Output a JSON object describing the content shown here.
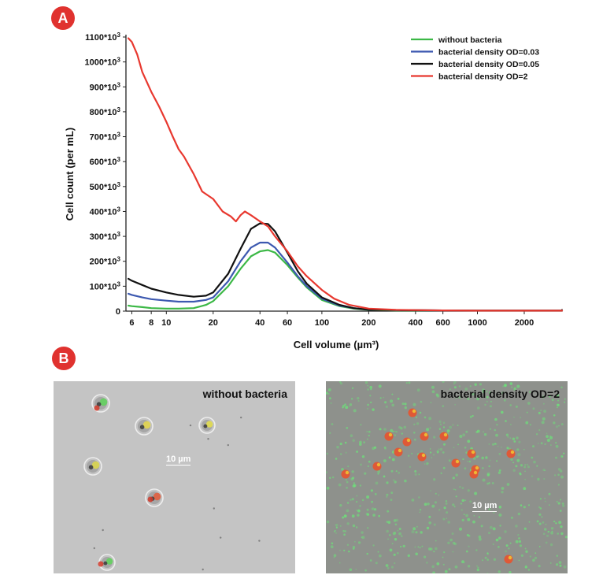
{
  "panel_a_label": "A",
  "panel_b_label": "B",
  "chart_data": {
    "type": "line",
    "xscale": "log",
    "xlabel": "Cell volume (µm³)",
    "ylabel": "Cell count (per mL)",
    "xlim": [
      5.5,
      3500
    ],
    "ylim": [
      0,
      1100000
    ],
    "xticks": [
      6,
      8,
      10,
      20,
      40,
      60,
      100,
      200,
      400,
      600,
      1000,
      2000
    ],
    "xticklabels": [
      "6",
      "8",
      "10",
      "20",
      "40",
      "60",
      "100",
      "200",
      "400",
      "600",
      "1000",
      "2000"
    ],
    "yticks": [
      0,
      100000,
      200000,
      300000,
      400000,
      500000,
      600000,
      700000,
      800000,
      900000,
      1000000,
      1100000
    ],
    "yticklabels": [
      "0",
      "100*10³",
      "200*10³",
      "300*10³",
      "400*10³",
      "500*10³",
      "600*10³",
      "700*10³",
      "800*10³",
      "900*10³",
      "1000*10³",
      "1100*10³"
    ],
    "legend_position": "top-right",
    "series": [
      {
        "name": "without bacteria",
        "color": "#3cb846",
        "x": [
          5.7,
          6,
          7,
          8,
          10,
          12,
          15,
          18,
          20,
          25,
          30,
          35,
          40,
          45,
          50,
          60,
          70,
          80,
          100,
          130,
          160,
          200,
          300,
          600,
          1000,
          2000,
          3500
        ],
        "y": [
          22000,
          20000,
          16000,
          12000,
          10000,
          10000,
          12000,
          25000,
          40000,
          100000,
          170000,
          220000,
          240000,
          245000,
          235000,
          185000,
          135000,
          95000,
          45000,
          20000,
          10000,
          5000,
          3000,
          3000,
          2000,
          2000,
          2000
        ]
      },
      {
        "name": "bacterial density OD=0.03",
        "color": "#3d59b0",
        "x": [
          5.7,
          6,
          7,
          8,
          10,
          12,
          15,
          18,
          20,
          25,
          30,
          35,
          40,
          45,
          50,
          60,
          70,
          80,
          100,
          130,
          160,
          200,
          300,
          600,
          1000,
          2000,
          3500
        ],
        "y": [
          70000,
          65000,
          55000,
          48000,
          42000,
          38000,
          38000,
          45000,
          55000,
          120000,
          200000,
          255000,
          275000,
          275000,
          255000,
          195000,
          140000,
          100000,
          50000,
          22000,
          12000,
          6000,
          4000,
          3000,
          2000,
          2000,
          2000
        ]
      },
      {
        "name": "bacterial density OD=0.05",
        "color": "#111111",
        "x": [
          5.7,
          6,
          7,
          8,
          10,
          12,
          15,
          18,
          20,
          25,
          30,
          35,
          40,
          45,
          50,
          60,
          70,
          80,
          100,
          130,
          160,
          200,
          300,
          600,
          1000,
          2000,
          3500
        ],
        "y": [
          130000,
          122000,
          105000,
          90000,
          75000,
          65000,
          58000,
          62000,
          75000,
          150000,
          250000,
          330000,
          352000,
          350000,
          320000,
          235000,
          160000,
          110000,
          55000,
          25000,
          12000,
          6000,
          4000,
          3000,
          2000,
          2000,
          2000
        ]
      },
      {
        "name": "bacterial density OD=2",
        "color": "#e8382f",
        "x": [
          5.7,
          6,
          6.5,
          7,
          8,
          9,
          10,
          11,
          12,
          13,
          15,
          17,
          20,
          23,
          26,
          28,
          30,
          32,
          35,
          40,
          45,
          50,
          60,
          70,
          80,
          100,
          120,
          150,
          200,
          300,
          600,
          1000,
          2000,
          3500
        ],
        "y": [
          1095000,
          1080000,
          1030000,
          960000,
          880000,
          820000,
          760000,
          700000,
          650000,
          620000,
          550000,
          480000,
          450000,
          400000,
          380000,
          360000,
          385000,
          400000,
          385000,
          360000,
          340000,
          300000,
          240000,
          180000,
          140000,
          85000,
          50000,
          25000,
          10000,
          5000,
          3000,
          2000,
          2000,
          2000
        ]
      }
    ]
  },
  "micrographs": [
    {
      "label": "without bacteria",
      "scale_bar": "10 µm"
    },
    {
      "label": "bacterial density OD=2",
      "scale_bar": "10 µm"
    }
  ],
  "colors": {
    "badge": "#e0322f",
    "micro_bg_left": "#c4c4c4",
    "micro_bg_right": "#8e918c"
  }
}
